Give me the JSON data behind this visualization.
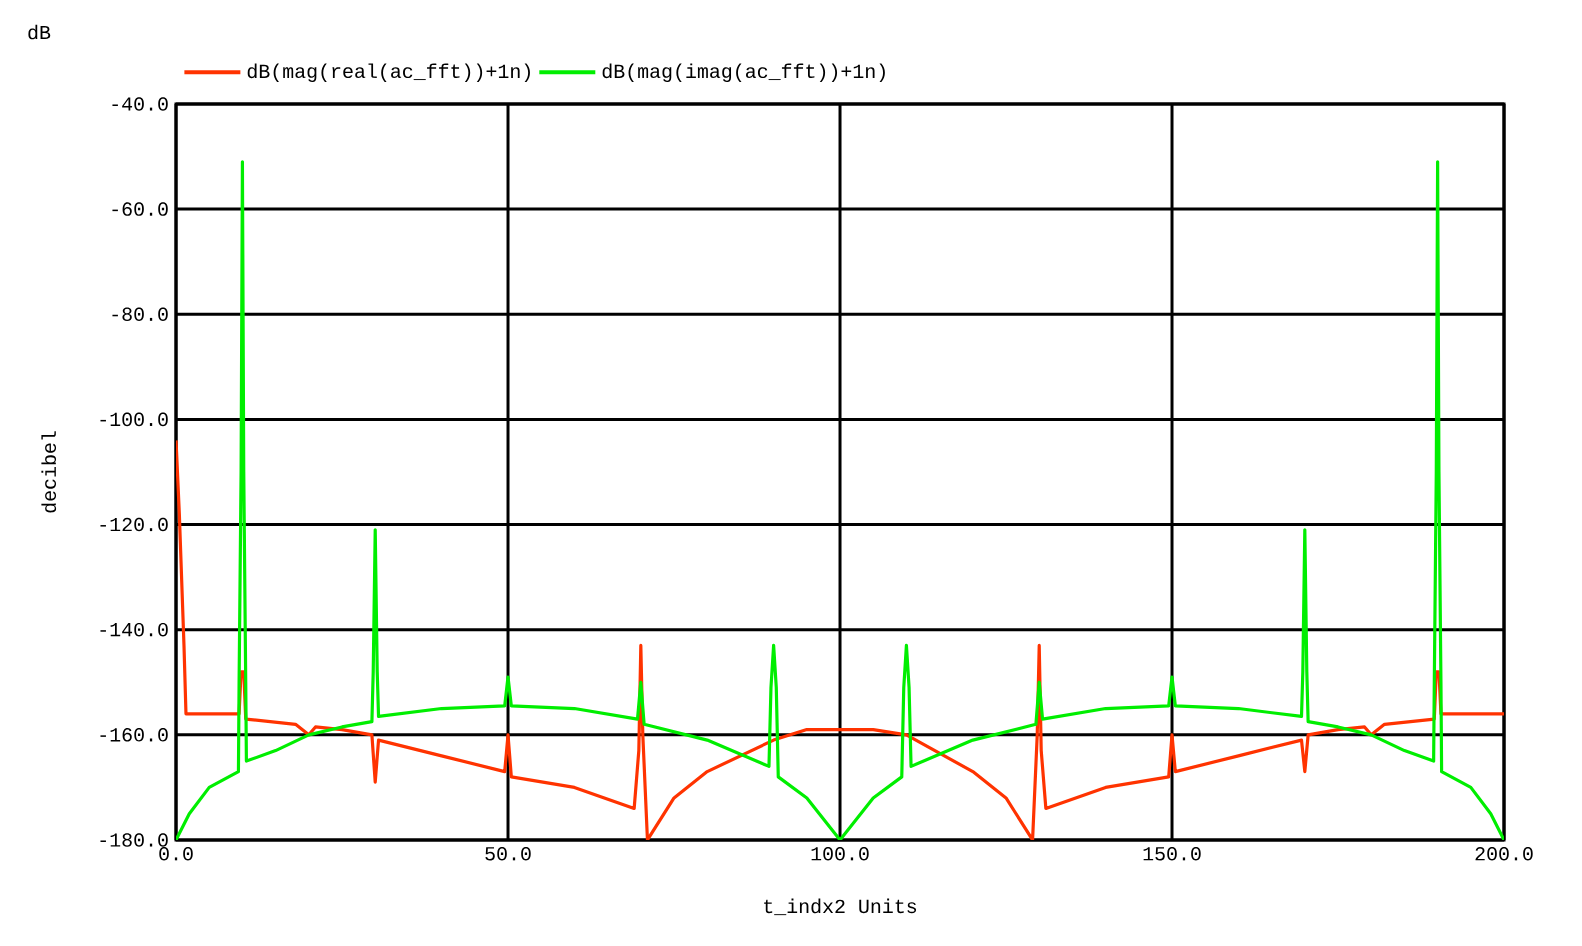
{
  "chart_data": {
    "type": "line",
    "xlabel": "t_indx2  Units",
    "ylabel": "decibel",
    "annotations": [
      "dB"
    ],
    "legend": "top",
    "grid": true,
    "xlim": [
      0,
      200
    ],
    "ylim": [
      -180,
      -40
    ],
    "xticks": [
      {
        "value": 0,
        "label": "0.0"
      },
      {
        "value": 50,
        "label": "50.0"
      },
      {
        "value": 100,
        "label": "100.0"
      },
      {
        "value": 150,
        "label": "150.0"
      },
      {
        "value": 200,
        "label": "200.0"
      }
    ],
    "yticks": [
      {
        "value": -180,
        "label": "-180.0"
      },
      {
        "value": -160,
        "label": "-160.0"
      },
      {
        "value": -140,
        "label": "-140.0"
      },
      {
        "value": -120,
        "label": "-120.0"
      },
      {
        "value": -100,
        "label": "-100.0"
      },
      {
        "value": -80,
        "label": "-80.0"
      },
      {
        "value": -60,
        "label": "-60.0"
      },
      {
        "value": -40,
        "label": "-40.0"
      }
    ],
    "series": [
      {
        "name": "dB(mag(real(ac_fft))+1n)",
        "color": "#ff3300",
        "x": [
          0,
          0.5,
          1.2,
          1.5,
          9.5,
          9.8,
          10.2,
          10.5,
          18,
          20,
          21,
          25,
          29.5,
          30,
          30.5,
          40,
          49.5,
          50,
          50.5,
          60,
          69,
          69.7,
          70,
          70.3,
          71,
          75,
          80,
          90,
          95,
          100,
          105,
          110,
          120,
          125,
          129,
          129.7,
          130,
          130.3,
          131,
          140,
          149.5,
          150,
          150.5,
          160,
          169.5,
          170,
          170.5,
          175,
          179,
          180,
          182,
          189.5,
          189.8,
          190.2,
          190.5,
          200
        ],
        "values": [
          -104,
          -118,
          -143,
          -156,
          -156,
          -148,
          -148,
          -157,
          -158,
          -160,
          -158.5,
          -159,
          -160,
          -169,
          -161,
          -164,
          -167,
          -160,
          -168,
          -170,
          -174,
          -163,
          -143,
          -160,
          -180,
          -172,
          -167,
          -161,
          -159,
          -159,
          -159,
          -160,
          -167,
          -172,
          -180,
          -160,
          -143,
          -163,
          -174,
          -170,
          -168,
          -160,
          -167,
          -164,
          -161,
          -167,
          -160,
          -159,
          -158.5,
          -160,
          -158,
          -157,
          -148,
          -148,
          -156,
          -156
        ]
      },
      {
        "name": "dB(mag(imag(ac_fft))+1n)",
        "color": "#00ee00",
        "x": [
          0,
          2,
          5,
          9.4,
          9.5,
          9.8,
          10,
          10.2,
          10.5,
          10.6,
          15,
          20,
          25,
          29.5,
          29.7,
          30,
          30.3,
          30.5,
          40,
          49.5,
          50,
          50.5,
          60,
          69.5,
          70,
          70.5,
          80,
          89.3,
          89.6,
          90,
          90.4,
          90.7,
          95,
          100,
          105,
          109.3,
          109.6,
          110,
          110.4,
          110.7,
          120,
          129.5,
          130,
          130.5,
          140,
          149.5,
          150,
          150.5,
          160,
          169.5,
          169.7,
          170,
          170.3,
          170.5,
          175,
          180,
          185,
          189.4,
          189.5,
          189.8,
          190,
          190.2,
          190.5,
          190.6,
          195,
          198,
          200
        ],
        "values": [
          -180,
          -175,
          -170,
          -167,
          -150,
          -110,
          -51,
          -110,
          -150,
          -165,
          -163,
          -160,
          -158.5,
          -157.5,
          -148,
          -121,
          -148,
          -156.5,
          -155,
          -154.5,
          -149,
          -154.5,
          -155,
          -157,
          -150,
          -158,
          -161,
          -166,
          -151,
          -143,
          -151,
          -168,
          -172,
          -180,
          -172,
          -168,
          -151,
          -143,
          -151,
          -166,
          -161,
          -158,
          -150,
          -157,
          -155,
          -154.5,
          -149,
          -154.5,
          -155,
          -156.5,
          -148,
          -121,
          -148,
          -157.5,
          -158.5,
          -160,
          -163,
          -165,
          -150,
          -110,
          -51,
          -110,
          -150,
          -167,
          -170,
          -175,
          -180
        ]
      }
    ]
  }
}
